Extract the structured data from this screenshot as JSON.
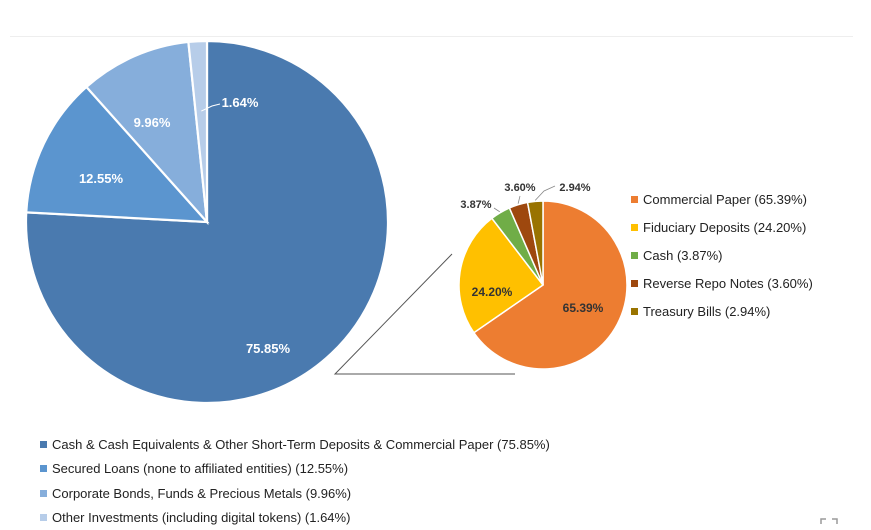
{
  "chart_data": [
    {
      "type": "pie",
      "title": "",
      "slices": [
        {
          "label": "Cash & Cash Equivalents & Other Short-Term Deposits & Commercial Paper",
          "legend_label": "Cash & Cash Equivalents & Other Short-Term Deposits & Commercial Paper (75.85%)",
          "value": 75.85,
          "data_label": "75.85%",
          "color": "#4a7aaf"
        },
        {
          "label": "Secured Loans (none to affiliated entities)",
          "legend_label": "Secured Loans (none to affiliated entities) (12.55%)",
          "value": 12.55,
          "data_label": "12.55%",
          "color": "#5b95cf"
        },
        {
          "label": "Corporate Bonds, Funds & Precious Metals",
          "legend_label": "Corporate Bonds, Funds & Precious Metals (9.96%)",
          "value": 9.96,
          "data_label": "9.96%",
          "color": "#86aedb"
        },
        {
          "label": "Other Investments (including digital tokens)",
          "legend_label": "Other Investments (including digital tokens) (1.64%)",
          "value": 1.64,
          "data_label": "1.64%",
          "color": "#b7cde9"
        }
      ],
      "legend_position": "bottom-left"
    },
    {
      "type": "pie",
      "title": "",
      "slices": [
        {
          "label": "Commercial Paper",
          "legend_label": "Commercial Paper (65.39%)",
          "value": 65.39,
          "data_label": "65.39%",
          "color": "#ed7d31"
        },
        {
          "label": "Fiduciary Deposits",
          "legend_label": "Fiduciary Deposits (24.20%)",
          "value": 24.2,
          "data_label": "24.20%",
          "color": "#ffc000"
        },
        {
          "label": "Cash",
          "legend_label": "Cash (3.87%)",
          "value": 3.87,
          "data_label": "3.87%",
          "color": "#70ad47"
        },
        {
          "label": "Reverse Repo Notes",
          "legend_label": "Reverse Repo Notes (3.60%)",
          "value": 3.6,
          "data_label": "3.60%",
          "color": "#9e480e"
        },
        {
          "label": "Treasury Bills",
          "legend_label": "Treasury Bills (2.94%)",
          "value": 2.94,
          "data_label": "2.94%",
          "color": "#997300"
        }
      ],
      "legend_position": "right"
    }
  ]
}
